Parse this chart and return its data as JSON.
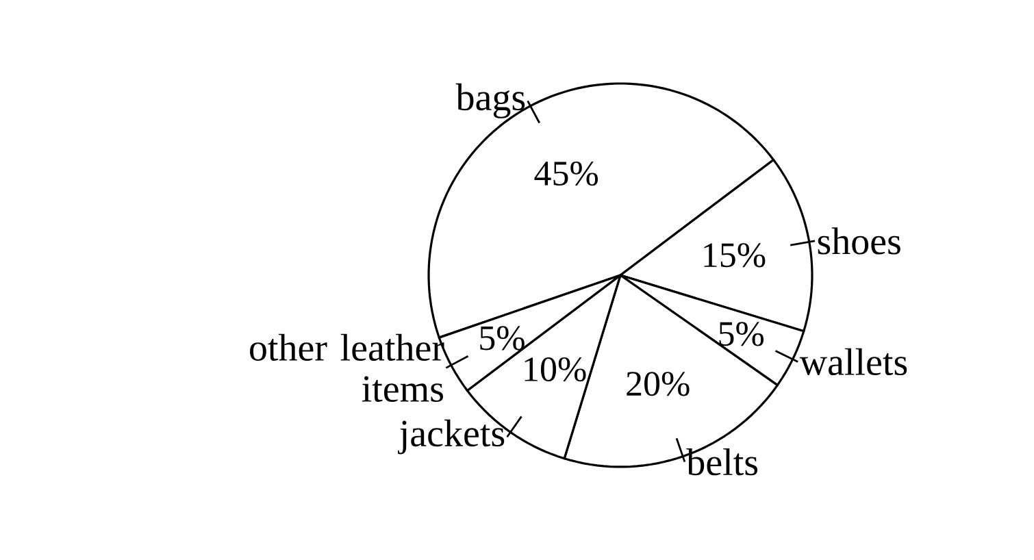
{
  "chart_data": {
    "type": "pie",
    "categories": [
      "bags",
      "shoes",
      "wallets",
      "belts",
      "jackets",
      "other leather items"
    ],
    "values": [
      45,
      15,
      5,
      20,
      10,
      5
    ],
    "value_labels": [
      "45%",
      "15%",
      "5%",
      "20%",
      "10%",
      "5%"
    ],
    "colors": [
      "#ffffff",
      "#ffffff",
      "#ffffff",
      "#ffffff",
      "#ffffff",
      "#ffffff"
    ]
  }
}
